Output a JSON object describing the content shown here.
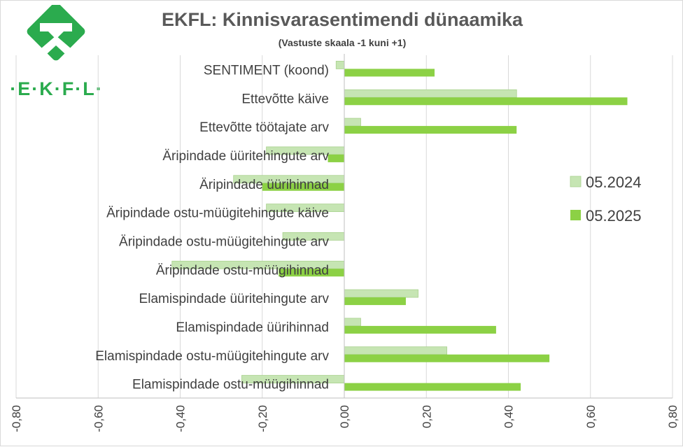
{
  "chart_data": {
    "type": "bar",
    "orientation": "horizontal",
    "title": "EKFL: Kinnisvarasentimendi dünaamika",
    "subtitle": "(Vastuste skaala -1 kuni +1)",
    "categories": [
      "SENTIMENT (koond)",
      "Ettevõtte käive",
      "Ettevõtte töötajate arv",
      "Äripindade üüritehingute arv",
      "Äripindade üürihinnad",
      "Äripindade ostu-müügitehingute käive",
      "Äripindade ostu-müügitehingute arv",
      "Äripindade ostu-müügihinnad",
      "Elamispindade üüritehingute arv",
      "Elamispindade üürihinnad",
      "Elamispindade ostu-müügitehingute arv",
      "Elamispindade ostu-müügihinnad"
    ],
    "series": [
      {
        "name": "05.2024",
        "color": "#c6e5b3",
        "values": [
          -0.02,
          0.42,
          0.04,
          -0.19,
          -0.27,
          -0.19,
          -0.15,
          -0.42,
          0.18,
          0.04,
          0.25,
          -0.25
        ]
      },
      {
        "name": "05.2025",
        "color": "#8cd145",
        "values": [
          0.22,
          0.69,
          0.42,
          -0.04,
          -0.2,
          0.0,
          0.0,
          -0.16,
          0.15,
          0.37,
          0.5,
          0.43
        ]
      }
    ],
    "xlim": [
      -0.8,
      0.8
    ],
    "xticks": [
      -0.8,
      -0.6,
      -0.4,
      -0.2,
      0.0,
      0.2,
      0.4,
      0.6,
      0.8
    ],
    "xtick_labels": [
      "-0,80",
      "-0,60",
      "-0,40",
      "-0,20",
      "0,00",
      "0,20",
      "0,40",
      "0,60",
      "0,80"
    ],
    "grid": true,
    "legend_position": "right"
  },
  "logo": {
    "text": "·E·K·F·L·",
    "color": "#2bab4e"
  }
}
